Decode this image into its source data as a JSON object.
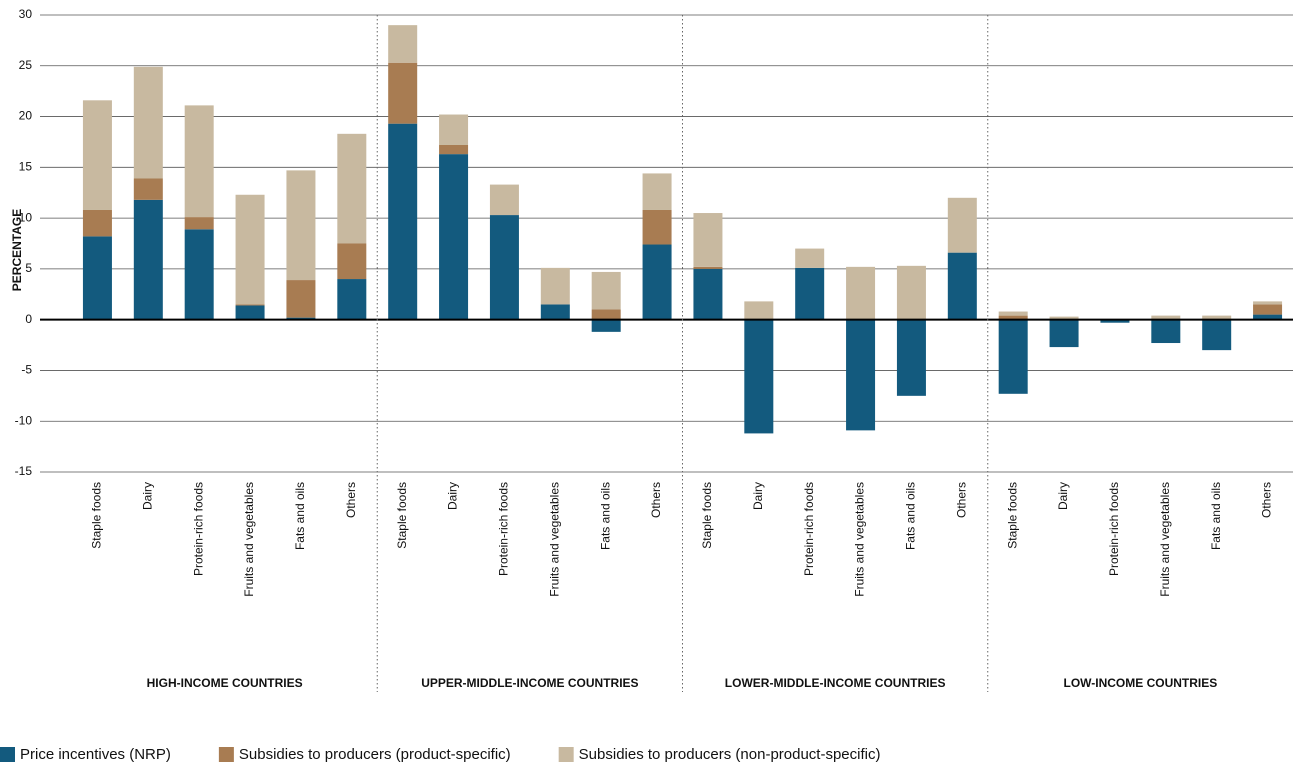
{
  "chart_data": {
    "type": "stacked_bar",
    "y_label": "PERCENTAGE",
    "categories": [
      "Staple foods",
      "Dairy",
      "Protein-rich foods",
      "Fruits and vegetables",
      "Fats and oils",
      "Others",
      "Staple foods",
      "Dairy",
      "Protein-rich foods",
      "Fruits and vegetables",
      "Fats and oils",
      "Others",
      "Staple foods",
      "Dairy",
      "Protein-rich foods",
      "Fruits and vegetables",
      "Fats and oils",
      "Others",
      "Staple foods",
      "Dairy",
      "Protein-rich foods",
      "Fruits and vegetables",
      "Fats and oils",
      "Others"
    ],
    "group_labels": [
      "HIGH-INCOME COUNTRIES",
      "UPPER-MIDDLE-INCOME COUNTRIES",
      "LOWER-MIDDLE-INCOME COUNTRIES",
      "LOW-INCOME COUNTRIES"
    ],
    "series": [
      {
        "name": "Price incentives (NRP)",
        "color": "#135a7e",
        "values": [
          8.2,
          11.8,
          8.9,
          1.4,
          0.2,
          4.0,
          19.3,
          16.3,
          10.3,
          1.5,
          -1.2,
          7.4,
          5.0,
          -11.2,
          5.1,
          -10.9,
          -7.5,
          6.6,
          -7.3,
          -2.7,
          -0.3,
          -2.3,
          -3.0,
          0.5
        ]
      },
      {
        "name": "Subsidies to producers (product-specific)",
        "color": "#a87c52",
        "values": [
          2.6,
          2.1,
          1.2,
          0.1,
          3.7,
          3.5,
          6.0,
          0.9,
          0,
          0,
          1.0,
          3.4,
          0.2,
          0,
          0,
          0,
          0,
          0,
          0.4,
          0,
          0,
          0,
          0,
          1.0
        ]
      },
      {
        "name": "Subsidies to producers (non-product-specific)",
        "color": "#c8b9a0",
        "values": [
          10.8,
          11.0,
          11.0,
          10.8,
          10.8,
          10.8,
          3.7,
          3.0,
          3.0,
          3.6,
          3.7,
          3.6,
          5.3,
          1.8,
          1.9,
          5.2,
          5.3,
          5.4,
          0.4,
          0.3,
          0,
          0.4,
          0.4,
          0.3
        ]
      }
    ],
    "ylim": [
      -15,
      30
    ],
    "yticks": [
      -15,
      -10,
      -5,
      0,
      5,
      10,
      15,
      20,
      25,
      30
    ],
    "grid": true
  }
}
